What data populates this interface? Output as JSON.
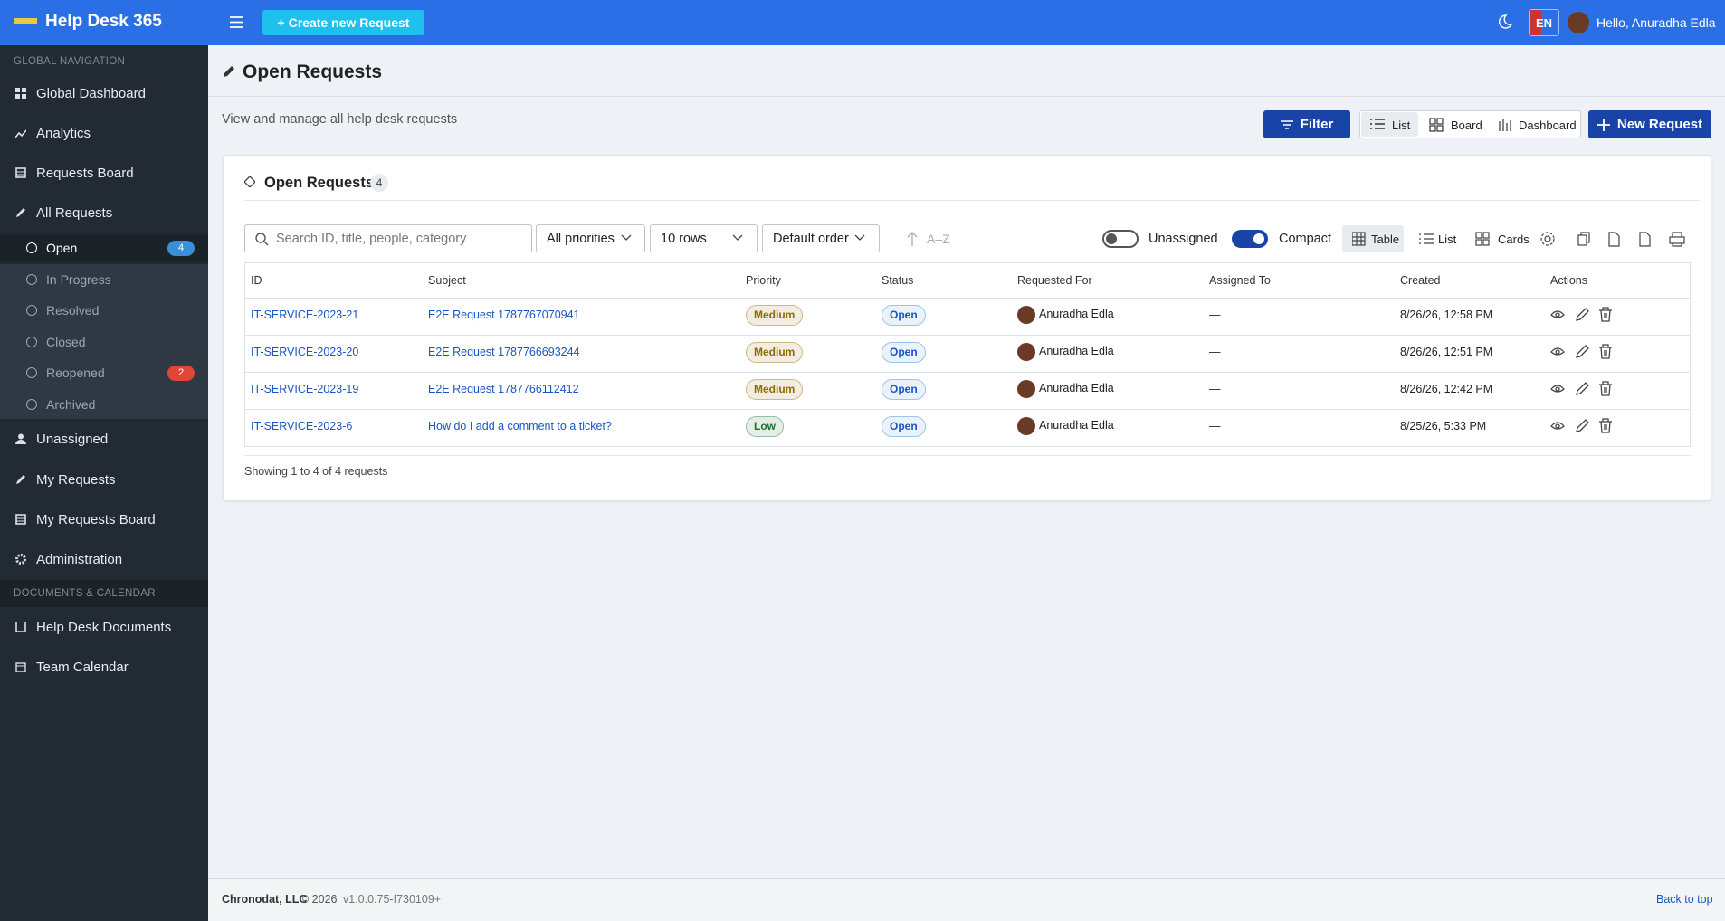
{
  "header": {
    "brand": "Help Desk 365",
    "create_button": "+ Create new Request",
    "language": "EN",
    "greeting": "Hello, Anuradha Edla"
  },
  "sidebar": {
    "global_label": "GLOBAL NAVIGATION",
    "global_dashboard": "Global Dashboard",
    "analytics": "Analytics",
    "requests_board": "Requests Board",
    "all_requests": "All Requests",
    "sub": [
      {
        "label": "Open",
        "badge": 4
      },
      {
        "label": "In Progress"
      },
      {
        "label": "Resolved"
      },
      {
        "label": "Closed"
      },
      {
        "label": "Reopened",
        "badge": 2
      },
      {
        "label": "Archived"
      }
    ],
    "unassigned": "Unassigned",
    "my_requests": "My Requests",
    "my_requests_board": "My Requests Board",
    "administration": "Administration",
    "docs_label": "DOCUMENTS & CALENDAR",
    "documents": "Help Desk Documents",
    "calendar": "Team Calendar"
  },
  "page": {
    "title": "Open Requests",
    "subtitle": "View and manage all help desk requests",
    "filter": "Filter",
    "views": [
      "List",
      "Board",
      "Dashboard"
    ],
    "new_request": "New Request"
  },
  "card": {
    "title": "Open Requests",
    "count": 4,
    "search_placeholder": "Search ID, title, people, category",
    "priority_filter": "All priorities",
    "rows_filter": "10 rows",
    "order": "Default order",
    "sort": "A–Z",
    "unassigned_toggle": "Unassigned",
    "compact_toggle": "Compact",
    "layouts": [
      "Table",
      "List",
      "Cards"
    ],
    "footer": "Showing 1 to 4 of 4 requests"
  },
  "table": {
    "columns": [
      "ID",
      "Subject",
      "Priority",
      "Status",
      "Requested For",
      "Assigned To",
      "Created",
      "Actions"
    ],
    "rows": [
      {
        "id": "IT-SERVICE-2023-21",
        "subject": "E2E Request 1787767070941",
        "priority": "Medium",
        "priority_color": "#b38600",
        "status": "Open",
        "requested_for": "Anuradha Edla",
        "assigned_to": "—",
        "created": "8/26/26, 12:58 PM"
      },
      {
        "id": "IT-SERVICE-2023-20",
        "subject": "E2E Request 1787766693244",
        "priority": "Medium",
        "priority_color": "#b38600",
        "status": "Open",
        "requested_for": "Anuradha Edla",
        "assigned_to": "—",
        "created": "8/26/26, 12:51 PM"
      },
      {
        "id": "IT-SERVICE-2023-19",
        "subject": "E2E Request 1787766112412",
        "priority": "Medium",
        "priority_color": "#b38600",
        "status": "Open",
        "requested_for": "Anuradha Edla",
        "assigned_to": "—",
        "created": "8/26/26, 12:42 PM"
      },
      {
        "id": "IT-SERVICE-2023-6",
        "subject": "How do I add a comment to a ticket?",
        "priority": "Low",
        "priority_color": "#2e8b3e",
        "status": "Open",
        "requested_for": "Anuradha Edla",
        "assigned_to": "—",
        "created": "8/25/26, 5:33 PM"
      }
    ]
  },
  "footer": {
    "company": "Chronodat, LLC",
    "copyright": "© 2026",
    "version": "v1.0.0.75-f730109+",
    "back_to_top": "Back to top"
  }
}
